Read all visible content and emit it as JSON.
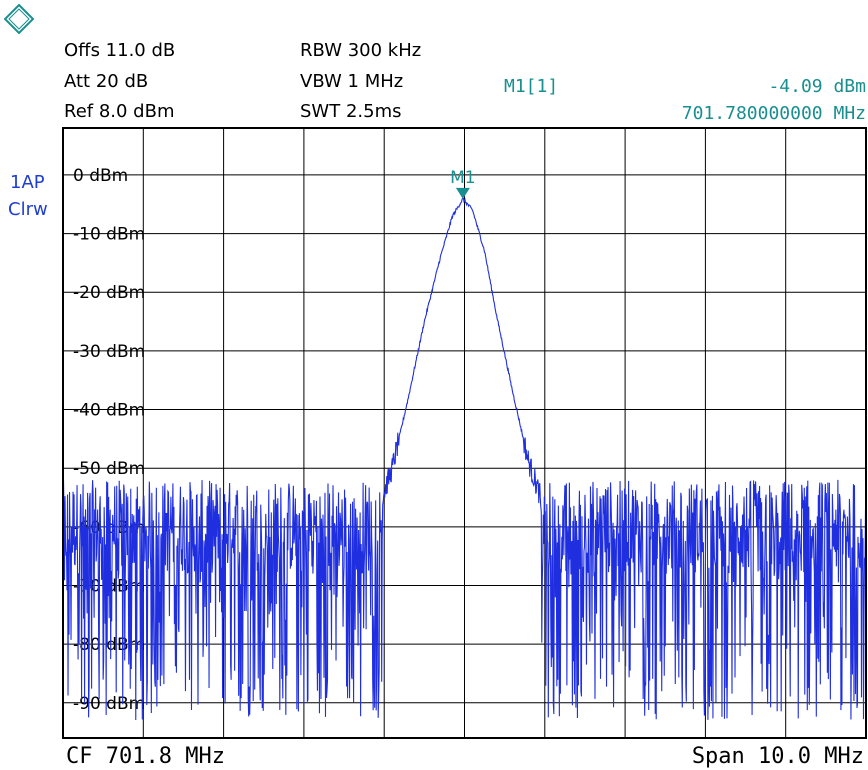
{
  "header": {
    "offs": "Offs 11.0 dB",
    "att": "Att  20 dB",
    "ref": "Ref  8.0 dBm",
    "rbw": "RBW 300 kHz",
    "vbw": "VBW 1 MHz",
    "swt": "SWT 2.5ms",
    "marker_name": "M1[1]",
    "marker_level": "-4.09 dBm",
    "marker_freq": "701.780000000 MHz"
  },
  "trace_info": {
    "line1": "1AP",
    "line2": "Clrw"
  },
  "footer": {
    "center": "CF 701.8 MHz",
    "span": "Span 10.0 MHz"
  },
  "colors": {
    "trace": "#1f2fe0",
    "marker": "#1a8f8f",
    "grid": "#000000",
    "labels": "#1f3fd0"
  },
  "chart_data": {
    "type": "line",
    "x_unit": "MHz",
    "y_unit": "dBm",
    "xlim": [
      696.8,
      706.8
    ],
    "ylim": [
      -96,
      8
    ],
    "y_ticks": [
      0,
      -10,
      -20,
      -30,
      -40,
      -50,
      -60,
      -70,
      -80,
      -90
    ],
    "y_tick_labels": [
      "0 dBm",
      "-10 dBm",
      "-20 dBm",
      "-30 dBm",
      "-40 dBm",
      "-50 dBm",
      "-60 dBm",
      "-70 dBm",
      "-80 dBm",
      "-90 dBm"
    ],
    "grid": true,
    "series": [
      {
        "x": [
          696.8,
          697.3,
          697.8,
          698.3,
          698.8,
          699.3,
          699.8,
          700.3,
          700.6,
          700.75,
          700.9,
          701.1,
          701.3,
          701.5,
          701.65,
          701.78,
          701.9,
          702.05,
          702.2,
          702.4,
          702.6,
          702.8,
          702.95,
          703.3,
          703.8,
          704.3,
          704.8,
          705.3,
          705.8,
          706.3,
          706.8
        ],
        "y": [
          -62,
          -63,
          -61,
          -64,
          -62,
          -63,
          -62,
          -64,
          -63,
          -56,
          -50,
          -38,
          -25,
          -14,
          -7,
          -4.09,
          -6,
          -13,
          -24,
          -37,
          -49,
          -57,
          -63,
          -62,
          -63,
          -61,
          -64,
          -62,
          -63,
          -62,
          -63
        ]
      }
    ],
    "noise_floor_band": [
      -85,
      -52
    ],
    "markers": [
      {
        "label": "M1",
        "x": 701.78,
        "y": -4.09
      }
    ]
  }
}
